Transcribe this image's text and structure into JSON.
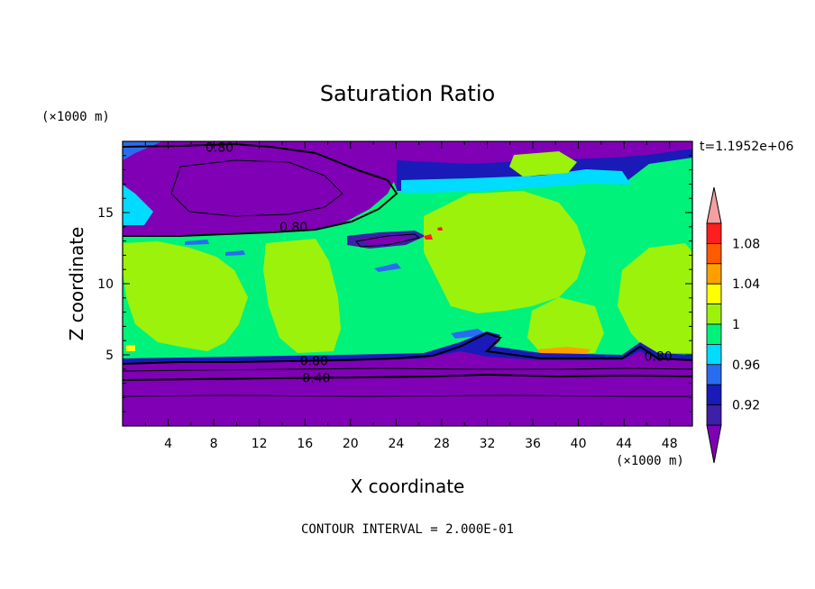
{
  "chart_data": {
    "type": "heatmap",
    "title": "Saturation Ratio",
    "xlabel": "X coordinate",
    "ylabel": "Z coordinate",
    "x_unit": "(×1000 m)",
    "y_unit": "(×1000 m)",
    "time_label": "t=1.1952e+06",
    "footer": "CONTOUR INTERVAL = 2.000E-01",
    "xlim": [
      0,
      50
    ],
    "ylim": [
      0,
      20
    ],
    "x_ticks": [
      "4",
      "8",
      "12",
      "16",
      "20",
      "24",
      "28",
      "32",
      "36",
      "40",
      "44",
      "48"
    ],
    "y_ticks": [
      "5",
      "10",
      "15"
    ],
    "x_tick_values": [
      4,
      8,
      12,
      16,
      20,
      24,
      28,
      32,
      36,
      40,
      44,
      48
    ],
    "y_tick_values": [
      5,
      10,
      15
    ],
    "contour_labels": [
      {
        "text": "0.80",
        "x": 8.5,
        "y": 19.6
      },
      {
        "text": "0.80",
        "x": 15,
        "y": 14.0
      },
      {
        "text": "0.80",
        "x": 16.8,
        "y": 4.6
      },
      {
        "text": "0.40",
        "x": 17.0,
        "y": 3.4
      },
      {
        "text": "0.80",
        "x": 47.0,
        "y": 4.9
      }
    ],
    "colorbar": {
      "levels": [
        "0.92",
        "0.96",
        "1",
        "1.04",
        "1.08"
      ],
      "bins": [
        {
          "color": "#7f00b5",
          "label": "< 0.90"
        },
        {
          "color": "#3d1fa8",
          "label": "0.90-0.92"
        },
        {
          "color": "#1a1ab8",
          "label": "0.92-0.94"
        },
        {
          "color": "#2a6cf0",
          "label": "0.94-0.96"
        },
        {
          "color": "#00dcff",
          "label": "0.96-0.98"
        },
        {
          "color": "#00f27a",
          "label": "0.98-1.00"
        },
        {
          "color": "#9cf20a",
          "label": "1.00-1.02"
        },
        {
          "color": "#ffff00",
          "label": "1.02-1.04"
        },
        {
          "color": "#ffa000",
          "label": "1.04-1.06"
        },
        {
          "color": "#ff5a00",
          "label": "1.06-1.08"
        },
        {
          "color": "#ff1e1e",
          "label": "1.08-1.10"
        },
        {
          "color": "#f4a0a0",
          "label": "> 1.10"
        }
      ]
    }
  }
}
